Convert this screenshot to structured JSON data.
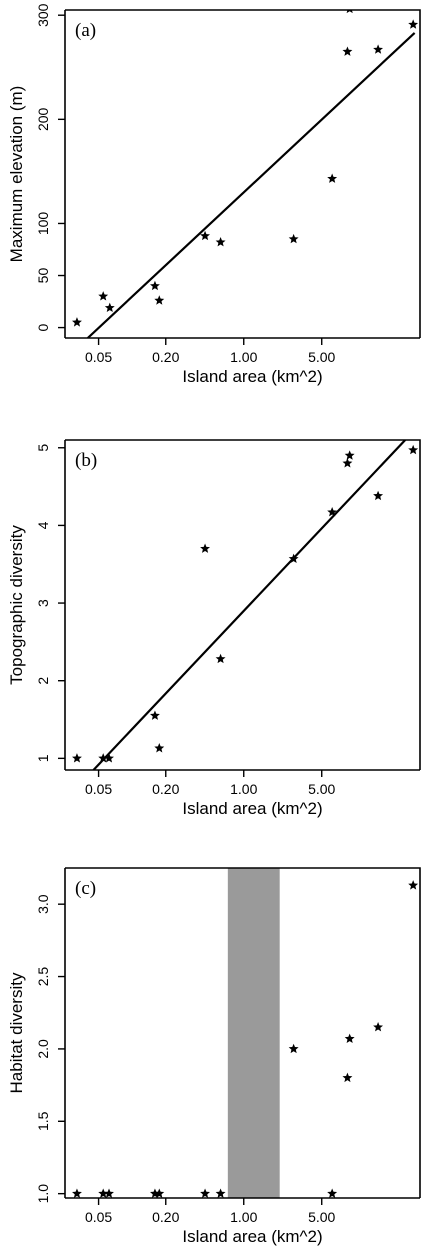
{
  "chart_data": [
    {
      "panel": "(a)",
      "type": "scatter",
      "xlabel": "Island area (km^2)",
      "ylabel": "Maximum elevation (m)",
      "xscale": "log",
      "xlim": [
        0.025,
        38
      ],
      "ylim": [
        -10,
        305
      ],
      "xticks": [
        0.05,
        0.2,
        1.0,
        5.0
      ],
      "xtick_labels": [
        "0.05",
        "0.20",
        "1.00",
        "5.00"
      ],
      "yticks": [
        0,
        50,
        100,
        200,
        300
      ],
      "ytick_labels": [
        "0",
        "50",
        "100",
        "200",
        "300"
      ],
      "grid": false,
      "points": [
        {
          "x": 0.032,
          "y": 5
        },
        {
          "x": 0.055,
          "y": 30
        },
        {
          "x": 0.063,
          "y": 19
        },
        {
          "x": 0.16,
          "y": 40
        },
        {
          "x": 0.175,
          "y": 26
        },
        {
          "x": 0.45,
          "y": 88
        },
        {
          "x": 0.62,
          "y": 82
        },
        {
          "x": 2.8,
          "y": 85
        },
        {
          "x": 6.2,
          "y": 143
        },
        {
          "x": 8.5,
          "y": 265
        },
        {
          "x": 8.9,
          "y": 306
        },
        {
          "x": 16,
          "y": 267
        },
        {
          "x": 33,
          "y": 291
        }
      ],
      "fit_line": [
        {
          "x": 0.04,
          "y": -10
        },
        {
          "x": 34,
          "y": 283
        }
      ]
    },
    {
      "panel": "(b)",
      "type": "scatter",
      "xlabel": "Island area (km^2)",
      "ylabel": "Topographic diversity",
      "xscale": "log",
      "xlim": [
        0.025,
        38
      ],
      "ylim": [
        0.85,
        5.1
      ],
      "xticks": [
        0.05,
        0.2,
        1.0,
        5.0
      ],
      "xtick_labels": [
        "0.05",
        "0.20",
        "1.00",
        "5.00"
      ],
      "yticks": [
        1,
        2,
        3,
        4,
        5
      ],
      "ytick_labels": [
        "1",
        "2",
        "3",
        "4",
        "5"
      ],
      "grid": false,
      "points": [
        {
          "x": 0.032,
          "y": 1.0
        },
        {
          "x": 0.055,
          "y": 1.0
        },
        {
          "x": 0.062,
          "y": 1.0
        },
        {
          "x": 0.16,
          "y": 1.55
        },
        {
          "x": 0.175,
          "y": 1.13
        },
        {
          "x": 0.45,
          "y": 3.7
        },
        {
          "x": 0.62,
          "y": 2.28
        },
        {
          "x": 2.8,
          "y": 3.57
        },
        {
          "x": 6.2,
          "y": 4.17
        },
        {
          "x": 8.5,
          "y": 4.8
        },
        {
          "x": 8.9,
          "y": 4.9
        },
        {
          "x": 16,
          "y": 4.38
        },
        {
          "x": 33,
          "y": 4.97
        }
      ],
      "fit_line": [
        {
          "x": 0.045,
          "y": 0.85
        },
        {
          "x": 28,
          "y": 5.1
        }
      ]
    },
    {
      "panel": "(c)",
      "type": "scatter",
      "xlabel": "Island area (km^2)",
      "ylabel": "Habitat diversity",
      "xscale": "log",
      "xlim": [
        0.025,
        38
      ],
      "ylim": [
        0.97,
        3.25
      ],
      "xticks": [
        0.05,
        0.2,
        1.0,
        5.0
      ],
      "xtick_labels": [
        "0.05",
        "0.20",
        "1.00",
        "5.00"
      ],
      "yticks": [
        1.0,
        1.5,
        2.0,
        2.5,
        3.0
      ],
      "ytick_labels": [
        "1.0",
        "1.5",
        "2.0",
        "2.5",
        "3.0"
      ],
      "grid": false,
      "shaded_band": {
        "x_from": 0.72,
        "x_to": 2.1,
        "color": "#9a9a9a"
      },
      "points": [
        {
          "x": 0.032,
          "y": 1.0
        },
        {
          "x": 0.055,
          "y": 1.0
        },
        {
          "x": 0.062,
          "y": 1.0
        },
        {
          "x": 0.16,
          "y": 1.0
        },
        {
          "x": 0.175,
          "y": 1.0
        },
        {
          "x": 0.45,
          "y": 1.0
        },
        {
          "x": 0.62,
          "y": 1.0
        },
        {
          "x": 2.8,
          "y": 2.0
        },
        {
          "x": 6.2,
          "y": 1.0
        },
        {
          "x": 8.5,
          "y": 1.8
        },
        {
          "x": 8.9,
          "y": 2.07
        },
        {
          "x": 16,
          "y": 2.15
        },
        {
          "x": 33,
          "y": 3.13
        }
      ]
    }
  ]
}
